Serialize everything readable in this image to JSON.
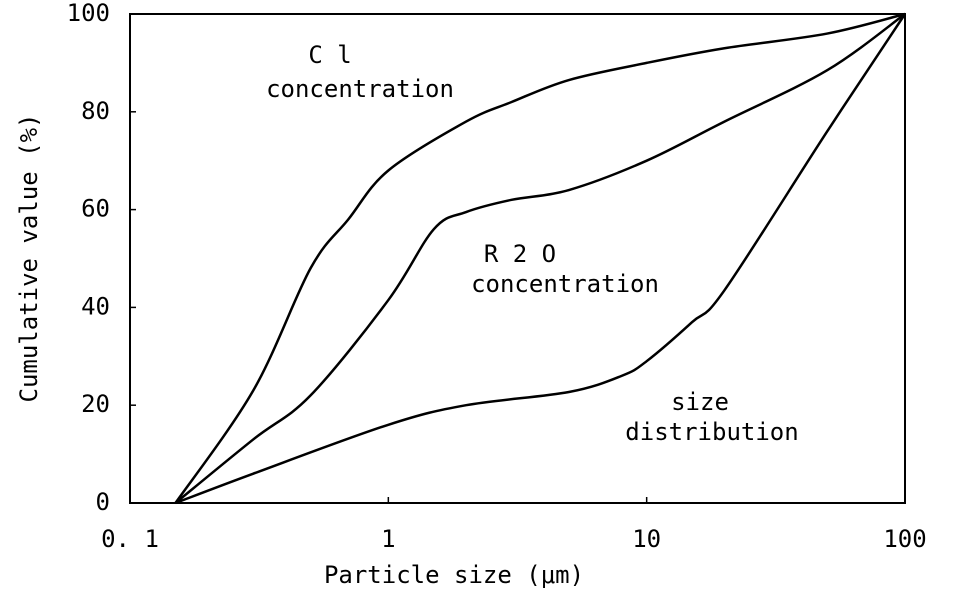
{
  "chart_data": {
    "type": "line",
    "xlabel": "Particle size (μm)",
    "ylabel": "Cumulative value (%)",
    "xscale": "log",
    "xlim": [
      0.1,
      100
    ],
    "xticks": [
      {
        "value": 0.1,
        "label": "0. 1"
      },
      1,
      10,
      100
    ],
    "ylim": [
      0,
      100
    ],
    "yticks": [
      0,
      20,
      40,
      60,
      80,
      100
    ],
    "grid": false,
    "series": [
      {
        "color": "#000000",
        "x": [
          0.15,
          0.3,
          0.5,
          0.7,
          1,
          2,
          3,
          5,
          10,
          20,
          50,
          100
        ],
        "values": [
          0,
          23,
          48,
          58,
          68,
          78,
          82,
          86.5,
          90,
          93,
          96,
          100
        ]
      },
      {
        "color": "#000000",
        "x": [
          0.15,
          0.3,
          0.5,
          1,
          1.5,
          2,
          3,
          5,
          10,
          20,
          50,
          100
        ],
        "values": [
          0,
          13,
          22,
          41.5,
          56,
          59.5,
          62,
          64,
          70,
          78,
          88.5,
          100
        ]
      },
      {
        "color": "#000000",
        "x": [
          0.15,
          0.3,
          1,
          2,
          5,
          8,
          10,
          15,
          20,
          50,
          100
        ],
        "values": [
          0,
          6,
          16,
          20,
          22.7,
          26,
          29,
          37,
          43.5,
          76,
          100
        ]
      }
    ],
    "annotations": [
      "C l",
      "concentration",
      "R 2 O",
      "concentration",
      "size",
      "distribution"
    ]
  }
}
